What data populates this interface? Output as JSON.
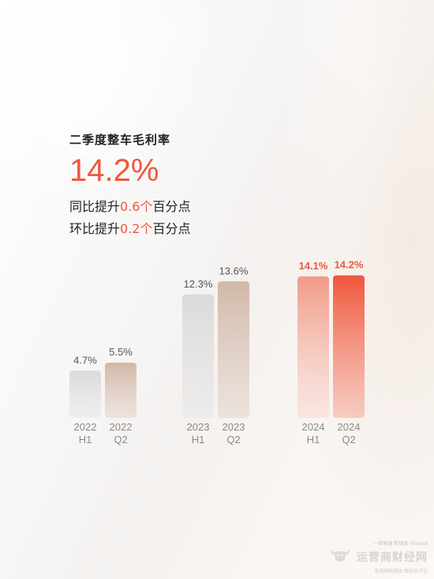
{
  "headline": {
    "subtitle": "二季度整车毛利率",
    "big_value": "14.2%",
    "yoy_prefix": "同比提升",
    "yoy_value": "0.6个",
    "yoy_suffix": "百分点",
    "qoq_prefix": "环比提升",
    "qoq_value": "0.2个",
    "qoq_suffix": "百分点"
  },
  "chart_data": {
    "type": "bar",
    "title": "二季度整车毛利率",
    "unit": "%",
    "categories": [
      [
        "2022",
        "H1"
      ],
      [
        "2022",
        "Q2"
      ],
      [
        "2023",
        "H1"
      ],
      [
        "2023",
        "Q2"
      ],
      [
        "2024",
        "H1"
      ],
      [
        "2024",
        "Q2"
      ]
    ],
    "values": [
      4.7,
      5.5,
      12.3,
      13.6,
      14.1,
      14.2
    ],
    "data_labels": [
      "4.7%",
      "5.5%",
      "12.3%",
      "13.6%",
      "14.1%",
      "14.2%"
    ],
    "ylim": [
      0,
      15
    ],
    "axes_visible": false,
    "grid": false,
    "colors": {
      "gray": [
        "#e6e5e4",
        "#dcdad8"
      ],
      "tan": [
        "#e0cfc4",
        "#d1b8a8"
      ],
      "pink": [
        "#f8cbc1",
        "#f29a88"
      ],
      "red": [
        "#f7826a",
        "#ef563c"
      ]
    }
  },
  "watermark": {
    "top_line": "一家高端·新媒体·Yuloclub",
    "main_text": "运营商财经网",
    "sub_line": "来源网络媒体·新闻及评论"
  }
}
